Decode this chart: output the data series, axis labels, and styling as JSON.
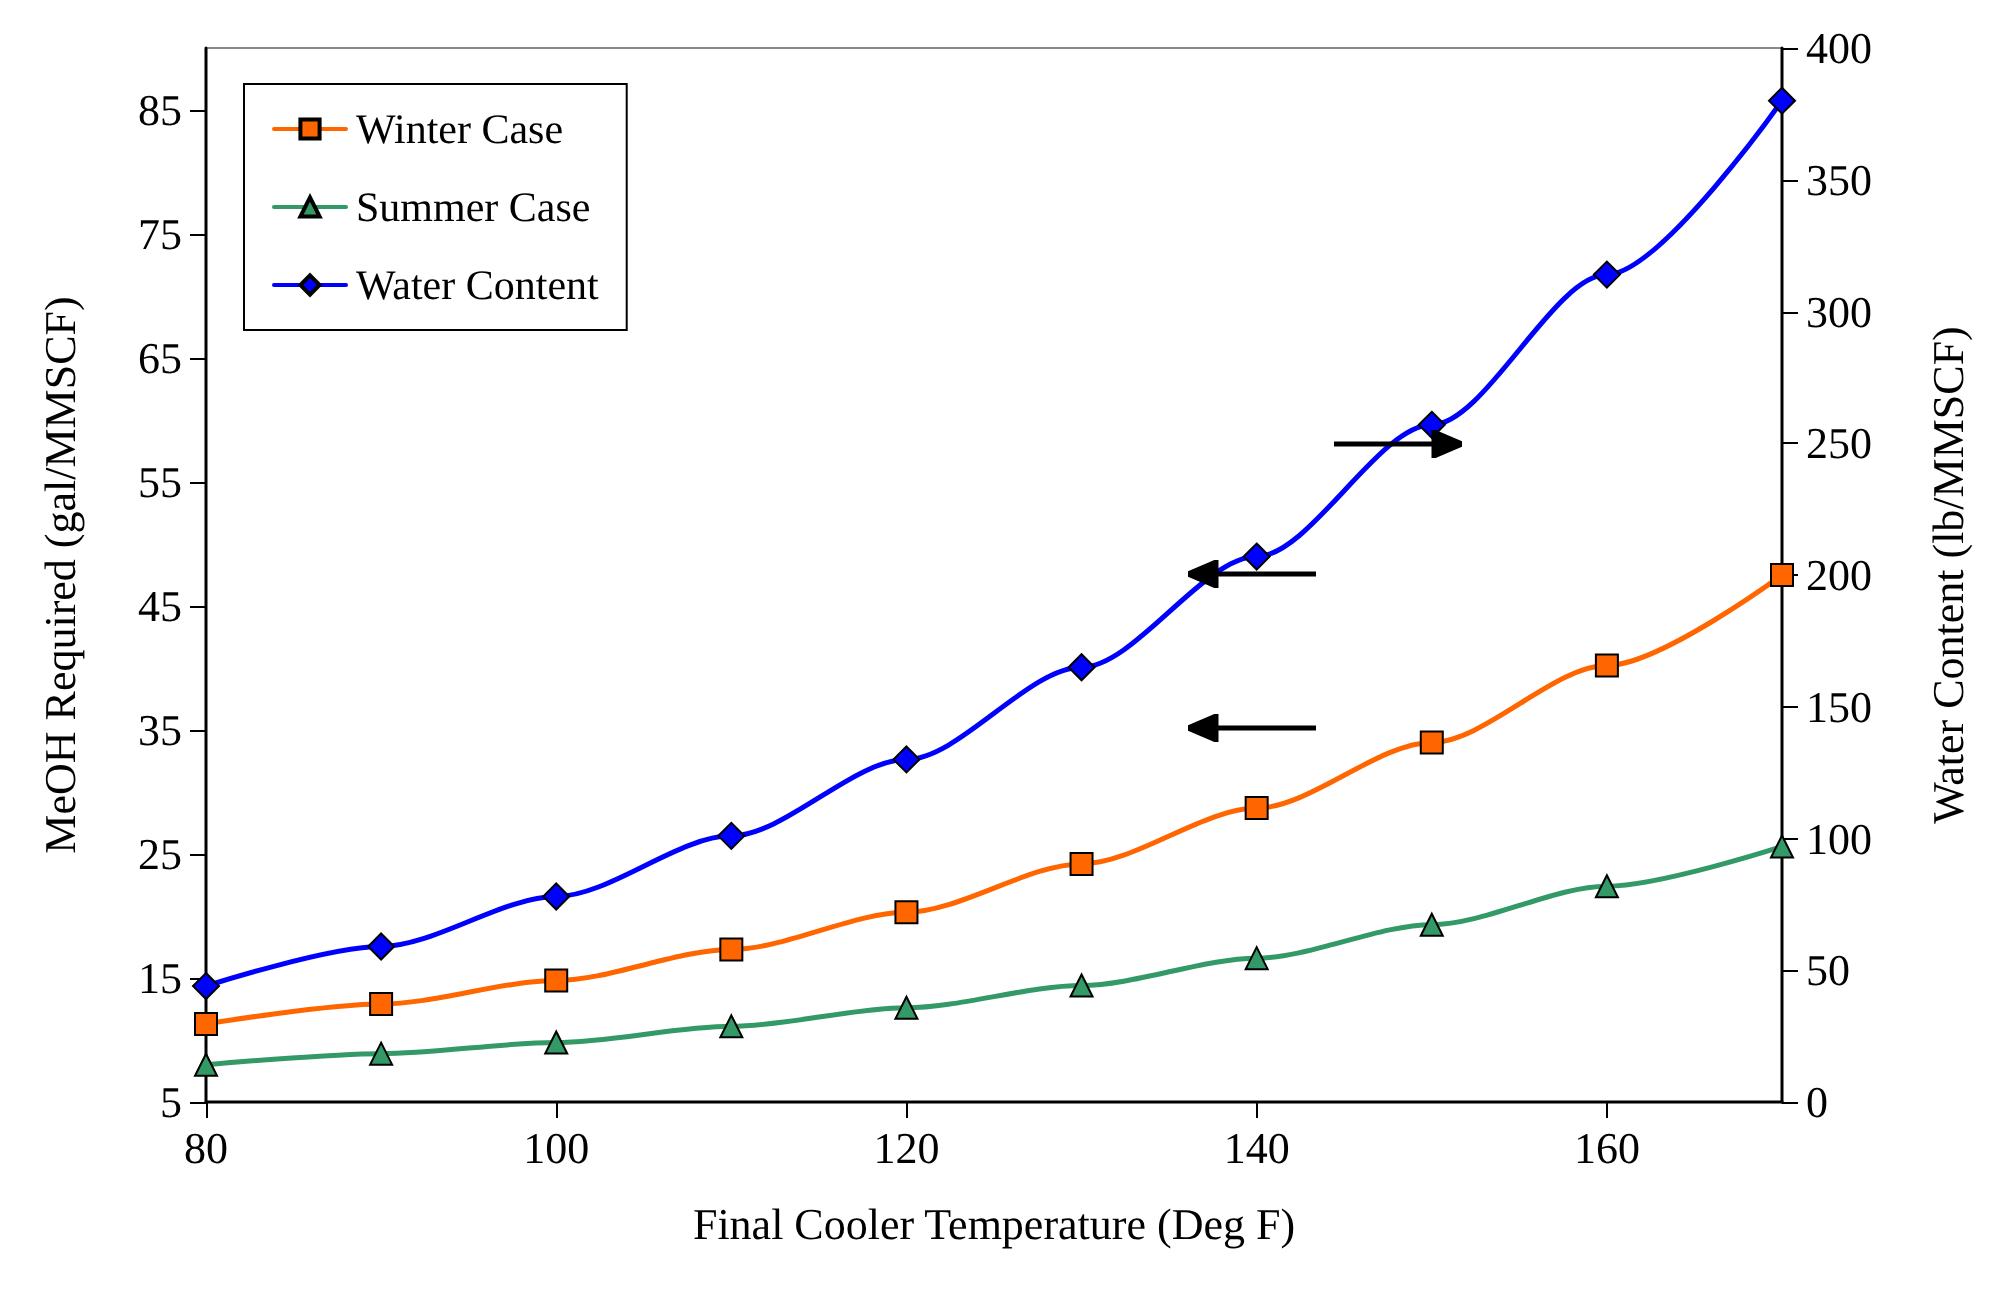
{
  "chart_data": {
    "type": "line",
    "xlabel": "Final Cooler Temperature (Deg F)",
    "ylabel": "MeOH Required (gal/MMSCF)",
    "y2label": "Water Content (lb/MMSCF)",
    "x": [
      80,
      90,
      100,
      110,
      120,
      130,
      140,
      150,
      160,
      170
    ],
    "xlim": [
      80,
      170
    ],
    "xticks": [
      80,
      100,
      120,
      140,
      160
    ],
    "ylim": [
      5,
      90
    ],
    "yticks": [
      5,
      15,
      25,
      35,
      45,
      55,
      65,
      75,
      85
    ],
    "y2lim": [
      0,
      400
    ],
    "y2ticks": [
      0,
      50,
      100,
      150,
      200,
      250,
      300,
      350,
      400
    ],
    "grid": false,
    "legend": "top left",
    "series": [
      {
        "name": "Winter Case",
        "color": "#ff6600",
        "marker": "square",
        "values": [
          11.3,
          12.9,
          14.8,
          17.3,
          20.3,
          24.2,
          28.7,
          34.0,
          40.2,
          47.5
        ]
      },
      {
        "name": "Summer Case",
        "color": "#339966",
        "marker": "triangle",
        "values": [
          8.0,
          8.9,
          9.8,
          11.1,
          12.6,
          14.4,
          16.6,
          19.3,
          22.4,
          25.6
        ]
      },
      {
        "name": "Water Content",
        "color": "#0000ff",
        "marker": "diamond",
        "axis": "y2",
        "values": [
          44,
          59,
          78,
          101,
          130,
          165,
          207,
          257,
          314,
          380
        ]
      }
    ]
  }
}
